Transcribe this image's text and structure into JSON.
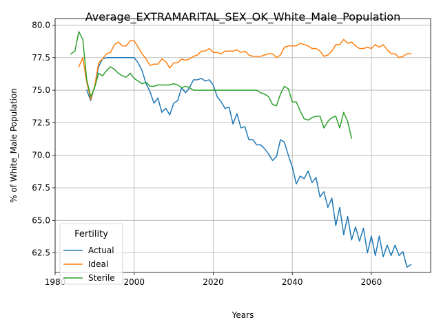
{
  "chart_data": {
    "type": "line",
    "title": "Average_EXTRAMARITAL_SEX_OK_White_Male_Population",
    "xlabel": "Years",
    "ylabel": "% of White_Male Population",
    "xlim": [
      1980,
      2075
    ],
    "ylim": [
      61.0,
      80.5
    ],
    "xticks": [
      1980,
      2000,
      2020,
      2040,
      2060
    ],
    "yticks": [
      62.5,
      65.0,
      67.5,
      70.0,
      72.5,
      75.0,
      77.5,
      80.0
    ],
    "xtick_labels": [
      "1980",
      "2000",
      "2020",
      "2040",
      "2060"
    ],
    "ytick_labels": [
      "62.5",
      "65.0",
      "67.5",
      "70.0",
      "72.5",
      "75.0",
      "77.5",
      "80.0"
    ],
    "grid": true,
    "legend": {
      "title": "Fertility",
      "position": "lower-left"
    },
    "series": [
      {
        "name": "Actual",
        "color": "#1f77b4",
        "points": [
          [
            1988,
            75.0
          ],
          [
            1989,
            74.2
          ],
          [
            1990,
            75.3
          ],
          [
            1991,
            76.8
          ],
          [
            1992,
            77.4
          ],
          [
            1993,
            77.5
          ],
          [
            1994,
            77.5
          ],
          [
            1995,
            77.5
          ],
          [
            1996,
            77.5
          ],
          [
            1997,
            77.5
          ],
          [
            1998,
            77.5
          ],
          [
            1999,
            77.5
          ],
          [
            2000,
            77.5
          ],
          [
            2001,
            77.1
          ],
          [
            2002,
            76.5
          ],
          [
            2003,
            75.5
          ],
          [
            2004,
            74.9
          ],
          [
            2005,
            74.0
          ],
          [
            2006,
            74.4
          ],
          [
            2007,
            73.3
          ],
          [
            2008,
            73.6
          ],
          [
            2009,
            73.1
          ],
          [
            2010,
            74.0
          ],
          [
            2011,
            74.2
          ],
          [
            2012,
            75.2
          ],
          [
            2013,
            74.8
          ],
          [
            2014,
            75.2
          ],
          [
            2015,
            75.8
          ],
          [
            2016,
            75.8
          ],
          [
            2017,
            75.9
          ],
          [
            2018,
            75.7
          ],
          [
            2019,
            75.8
          ],
          [
            2020,
            75.4
          ],
          [
            2021,
            74.5
          ],
          [
            2022,
            74.1
          ],
          [
            2023,
            73.6
          ],
          [
            2024,
            73.7
          ],
          [
            2025,
            72.4
          ],
          [
            2026,
            73.2
          ],
          [
            2027,
            72.1
          ],
          [
            2028,
            72.2
          ],
          [
            2029,
            71.2
          ],
          [
            2030,
            71.2
          ],
          [
            2031,
            70.8
          ],
          [
            2032,
            70.8
          ],
          [
            2033,
            70.5
          ],
          [
            2034,
            70.1
          ],
          [
            2035,
            69.6
          ],
          [
            2036,
            69.9
          ],
          [
            2037,
            71.2
          ],
          [
            2038,
            71.0
          ],
          [
            2039,
            70.0
          ],
          [
            2040,
            69.1
          ],
          [
            2041,
            67.8
          ],
          [
            2042,
            68.4
          ],
          [
            2043,
            68.2
          ],
          [
            2044,
            68.8
          ],
          [
            2045,
            67.9
          ],
          [
            2046,
            68.3
          ],
          [
            2047,
            66.8
          ],
          [
            2048,
            67.2
          ],
          [
            2049,
            66.0
          ],
          [
            2050,
            66.7
          ],
          [
            2051,
            64.6
          ],
          [
            2052,
            66.0
          ],
          [
            2053,
            63.9
          ],
          [
            2054,
            65.3
          ],
          [
            2055,
            63.5
          ],
          [
            2056,
            64.5
          ],
          [
            2057,
            63.4
          ],
          [
            2058,
            64.4
          ],
          [
            2059,
            62.5
          ],
          [
            2060,
            63.8
          ],
          [
            2061,
            62.3
          ],
          [
            2062,
            63.8
          ],
          [
            2063,
            62.2
          ],
          [
            2064,
            63.1
          ],
          [
            2065,
            62.3
          ],
          [
            2066,
            63.1
          ],
          [
            2067,
            62.3
          ],
          [
            2068,
            62.6
          ],
          [
            2069,
            61.4
          ],
          [
            2070,
            61.6
          ]
        ]
      },
      {
        "name": "Ideal",
        "color": "#ff7f0e",
        "points": [
          [
            1986,
            76.8
          ],
          [
            1987,
            77.5
          ],
          [
            1988,
            75.6
          ],
          [
            1989,
            74.3
          ],
          [
            1990,
            75.3
          ],
          [
            1991,
            77.1
          ],
          [
            1992,
            77.4
          ],
          [
            1993,
            77.8
          ],
          [
            1994,
            77.9
          ],
          [
            1995,
            78.5
          ],
          [
            1996,
            78.7
          ],
          [
            1997,
            78.4
          ],
          [
            1998,
            78.4
          ],
          [
            1999,
            78.8
          ],
          [
            2000,
            78.8
          ],
          [
            2001,
            78.3
          ],
          [
            2002,
            77.8
          ],
          [
            2003,
            77.4
          ],
          [
            2004,
            76.9
          ],
          [
            2005,
            77.0
          ],
          [
            2006,
            77.0
          ],
          [
            2007,
            77.4
          ],
          [
            2008,
            77.2
          ],
          [
            2009,
            76.7
          ],
          [
            2010,
            77.1
          ],
          [
            2011,
            77.1
          ],
          [
            2012,
            77.4
          ],
          [
            2013,
            77.3
          ],
          [
            2014,
            77.4
          ],
          [
            2015,
            77.6
          ],
          [
            2016,
            77.7
          ],
          [
            2017,
            78.0
          ],
          [
            2018,
            78.0
          ],
          [
            2019,
            78.2
          ],
          [
            2020,
            77.9
          ],
          [
            2021,
            77.9
          ],
          [
            2022,
            77.8
          ],
          [
            2023,
            78.0
          ],
          [
            2024,
            78.0
          ],
          [
            2025,
            78.0
          ],
          [
            2026,
            78.1
          ],
          [
            2027,
            77.9
          ],
          [
            2028,
            78.0
          ],
          [
            2029,
            77.7
          ],
          [
            2030,
            77.6
          ],
          [
            2031,
            77.6
          ],
          [
            2032,
            77.6
          ],
          [
            2033,
            77.7
          ],
          [
            2034,
            77.8
          ],
          [
            2035,
            77.8
          ],
          [
            2036,
            77.5
          ],
          [
            2037,
            77.7
          ],
          [
            2038,
            78.3
          ],
          [
            2039,
            78.4
          ],
          [
            2040,
            78.4
          ],
          [
            2041,
            78.4
          ],
          [
            2042,
            78.6
          ],
          [
            2043,
            78.5
          ],
          [
            2044,
            78.4
          ],
          [
            2045,
            78.2
          ],
          [
            2046,
            78.2
          ],
          [
            2047,
            78.0
          ],
          [
            2048,
            77.6
          ],
          [
            2049,
            77.7
          ],
          [
            2050,
            78.0
          ],
          [
            2051,
            78.5
          ],
          [
            2052,
            78.5
          ],
          [
            2053,
            78.9
          ],
          [
            2054,
            78.6
          ],
          [
            2055,
            78.7
          ],
          [
            2056,
            78.4
          ],
          [
            2057,
            78.2
          ],
          [
            2058,
            78.2
          ],
          [
            2059,
            78.3
          ],
          [
            2060,
            78.2
          ],
          [
            2061,
            78.5
          ],
          [
            2062,
            78.3
          ],
          [
            2063,
            78.5
          ],
          [
            2064,
            78.1
          ],
          [
            2065,
            77.8
          ],
          [
            2066,
            77.8
          ],
          [
            2067,
            77.5
          ],
          [
            2068,
            77.6
          ],
          [
            2069,
            77.8
          ],
          [
            2070,
            77.8
          ]
        ]
      },
      {
        "name": "Sterile",
        "color": "#2ca02c",
        "points": [
          [
            1984,
            77.8
          ],
          [
            1985,
            78.0
          ],
          [
            1986,
            79.5
          ],
          [
            1987,
            78.9
          ],
          [
            1988,
            75.8
          ],
          [
            1989,
            74.5
          ],
          [
            1990,
            75.2
          ],
          [
            1991,
            76.3
          ],
          [
            1992,
            76.1
          ],
          [
            1993,
            76.5
          ],
          [
            1994,
            76.8
          ],
          [
            1995,
            76.6
          ],
          [
            1996,
            76.3
          ],
          [
            1997,
            76.1
          ],
          [
            1998,
            76.0
          ],
          [
            1999,
            76.3
          ],
          [
            2000,
            75.9
          ],
          [
            2001,
            75.7
          ],
          [
            2002,
            75.5
          ],
          [
            2003,
            75.6
          ],
          [
            2004,
            75.3
          ],
          [
            2005,
            75.3
          ],
          [
            2006,
            75.4
          ],
          [
            2007,
            75.4
          ],
          [
            2008,
            75.4
          ],
          [
            2009,
            75.4
          ],
          [
            2010,
            75.5
          ],
          [
            2011,
            75.4
          ],
          [
            2012,
            75.2
          ],
          [
            2013,
            75.3
          ],
          [
            2014,
            75.2
          ],
          [
            2015,
            75.0
          ],
          [
            2016,
            75.0
          ],
          [
            2017,
            75.0
          ],
          [
            2018,
            75.0
          ],
          [
            2019,
            75.0
          ],
          [
            2020,
            75.0
          ],
          [
            2021,
            75.0
          ],
          [
            2022,
            75.0
          ],
          [
            2023,
            75.0
          ],
          [
            2024,
            75.0
          ],
          [
            2025,
            75.0
          ],
          [
            2026,
            75.0
          ],
          [
            2027,
            75.0
          ],
          [
            2028,
            75.0
          ],
          [
            2029,
            75.0
          ],
          [
            2030,
            75.0
          ],
          [
            2031,
            75.0
          ],
          [
            2032,
            74.8
          ],
          [
            2033,
            74.7
          ],
          [
            2034,
            74.5
          ],
          [
            2035,
            73.9
          ],
          [
            2036,
            73.8
          ],
          [
            2037,
            74.7
          ],
          [
            2038,
            75.3
          ],
          [
            2039,
            75.1
          ],
          [
            2040,
            74.1
          ],
          [
            2041,
            74.1
          ],
          [
            2042,
            73.4
          ],
          [
            2043,
            72.8
          ],
          [
            2044,
            72.7
          ],
          [
            2045,
            72.9
          ],
          [
            2046,
            73.0
          ],
          [
            2047,
            73.0
          ],
          [
            2048,
            72.1
          ],
          [
            2049,
            72.6
          ],
          [
            2050,
            72.9
          ],
          [
            2051,
            73.0
          ],
          [
            2052,
            72.1
          ],
          [
            2053,
            73.3
          ],
          [
            2054,
            72.6
          ],
          [
            2055,
            71.3
          ]
        ]
      }
    ]
  }
}
